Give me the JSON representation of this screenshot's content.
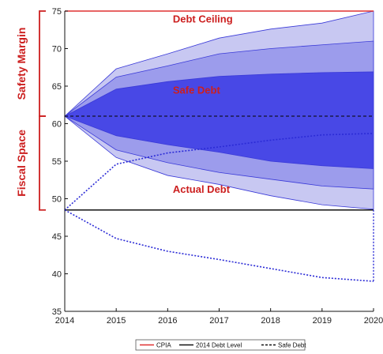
{
  "chart_data": {
    "type": "area",
    "x": [
      2014,
      2015,
      2016,
      2017,
      2018,
      2019,
      2020
    ],
    "xlim": [
      2014,
      2020
    ],
    "ylim": [
      35,
      75
    ],
    "yticks": [
      35,
      40,
      45,
      50,
      55,
      60,
      65,
      70,
      75
    ],
    "grid": false,
    "legend_placement": "bottom",
    "fan_bands": [
      {
        "upper": [
          61,
          67.3,
          69.3,
          71.4,
          72.6,
          73.4,
          75.0
        ],
        "lower": [
          61,
          55.5,
          53.1,
          51.9,
          50.4,
          49.2,
          48.6
        ],
        "color": "#c8c8f2"
      },
      {
        "upper": [
          61,
          66.2,
          67.7,
          69.3,
          70.0,
          70.5,
          71.0
        ],
        "lower": [
          61,
          56.5,
          54.8,
          53.5,
          52.6,
          51.7,
          51.3
        ],
        "color": "#9c9cec"
      },
      {
        "upper": [
          61,
          64.6,
          65.6,
          66.3,
          66.6,
          66.8,
          66.9
        ],
        "lower": [
          61,
          58.4,
          57.2,
          56.2,
          55.0,
          54.4,
          54.0
        ],
        "color": "#4848e6"
      }
    ],
    "lines": [
      {
        "name": "CPIA",
        "style": "solid",
        "color": "#e03030",
        "values": [
          75,
          75,
          75,
          75,
          75,
          75,
          75
        ]
      },
      {
        "name": "2014 Debt Level",
        "style": "solid",
        "color": "#111111",
        "values": [
          48.5,
          48.5,
          48.5,
          48.5,
          48.5,
          48.5,
          48.5
        ]
      },
      {
        "name": "Safe Debt",
        "style": "dashed",
        "color": "#1a1a4a",
        "values": [
          61,
          61,
          61,
          61,
          61,
          61,
          61
        ]
      }
    ],
    "dotted_paths": [
      {
        "values": [
          48.5,
          54.6,
          56.1,
          56.9,
          57.8,
          58.5,
          58.7
        ],
        "color": "#2b2bd6"
      },
      {
        "values": [
          48.5,
          44.7,
          43.0,
          41.9,
          40.7,
          39.5,
          39.0
        ],
        "color": "#2b2bd6"
      }
    ],
    "right_edge_dotted": {
      "from": 48.5,
      "to": 39.0,
      "color": "#2b2bd6"
    },
    "annotations": [
      {
        "text": "Debt Ceiling",
        "x": 2016.1,
        "y": 73.5
      },
      {
        "text": "Safe Debt",
        "x": 2016.1,
        "y": 64.0
      },
      {
        "text": "Actual Debt",
        "x": 2016.1,
        "y": 50.8
      }
    ],
    "side_labels": [
      {
        "text": "Safety Margin",
        "from": 61,
        "to": 75
      },
      {
        "text": "Fiscal Space",
        "from": 48.5,
        "to": 61
      }
    ],
    "legend": [
      {
        "label": "CPIA",
        "style": "solid",
        "color": "#e03030"
      },
      {
        "label": "2014 Debt Level",
        "style": "solid",
        "color": "#111111"
      },
      {
        "label": "Safe Debt",
        "style": "dashed",
        "color": "#111111"
      }
    ]
  }
}
